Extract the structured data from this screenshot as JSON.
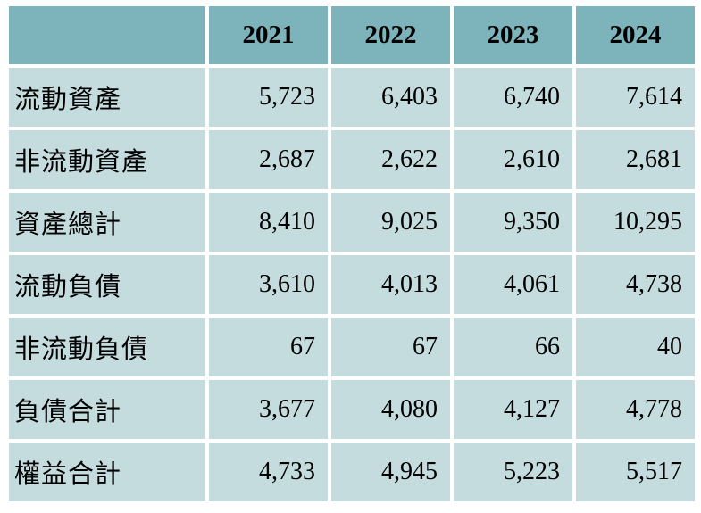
{
  "table": {
    "header_corner": "",
    "columns": [
      "2021",
      "2022",
      "2023",
      "2024"
    ],
    "rows": [
      {
        "label": "流動資產",
        "values": [
          "5,723",
          "6,403",
          "6,740",
          "7,614"
        ]
      },
      {
        "label": "非流動資產",
        "values": [
          "2,687",
          "2,622",
          "2,610",
          "2,681"
        ]
      },
      {
        "label": "資產總計",
        "values": [
          "8,410",
          "9,025",
          "9,350",
          "10,295"
        ]
      },
      {
        "label": "流動負債",
        "values": [
          "3,610",
          "4,013",
          "4,061",
          "4,738"
        ]
      },
      {
        "label": "非流動負債",
        "values": [
          "67",
          "67",
          "66",
          "40"
        ]
      },
      {
        "label": "負債合計",
        "values": [
          "3,677",
          "4,080",
          "4,127",
          "4,778"
        ]
      },
      {
        "label": "權益合計",
        "values": [
          "4,733",
          "4,945",
          "5,223",
          "5,517"
        ]
      }
    ],
    "colors": {
      "header_bg": "#7db3ba",
      "cell_bg": "#c5dcdf",
      "grid": "#ffffff"
    }
  }
}
